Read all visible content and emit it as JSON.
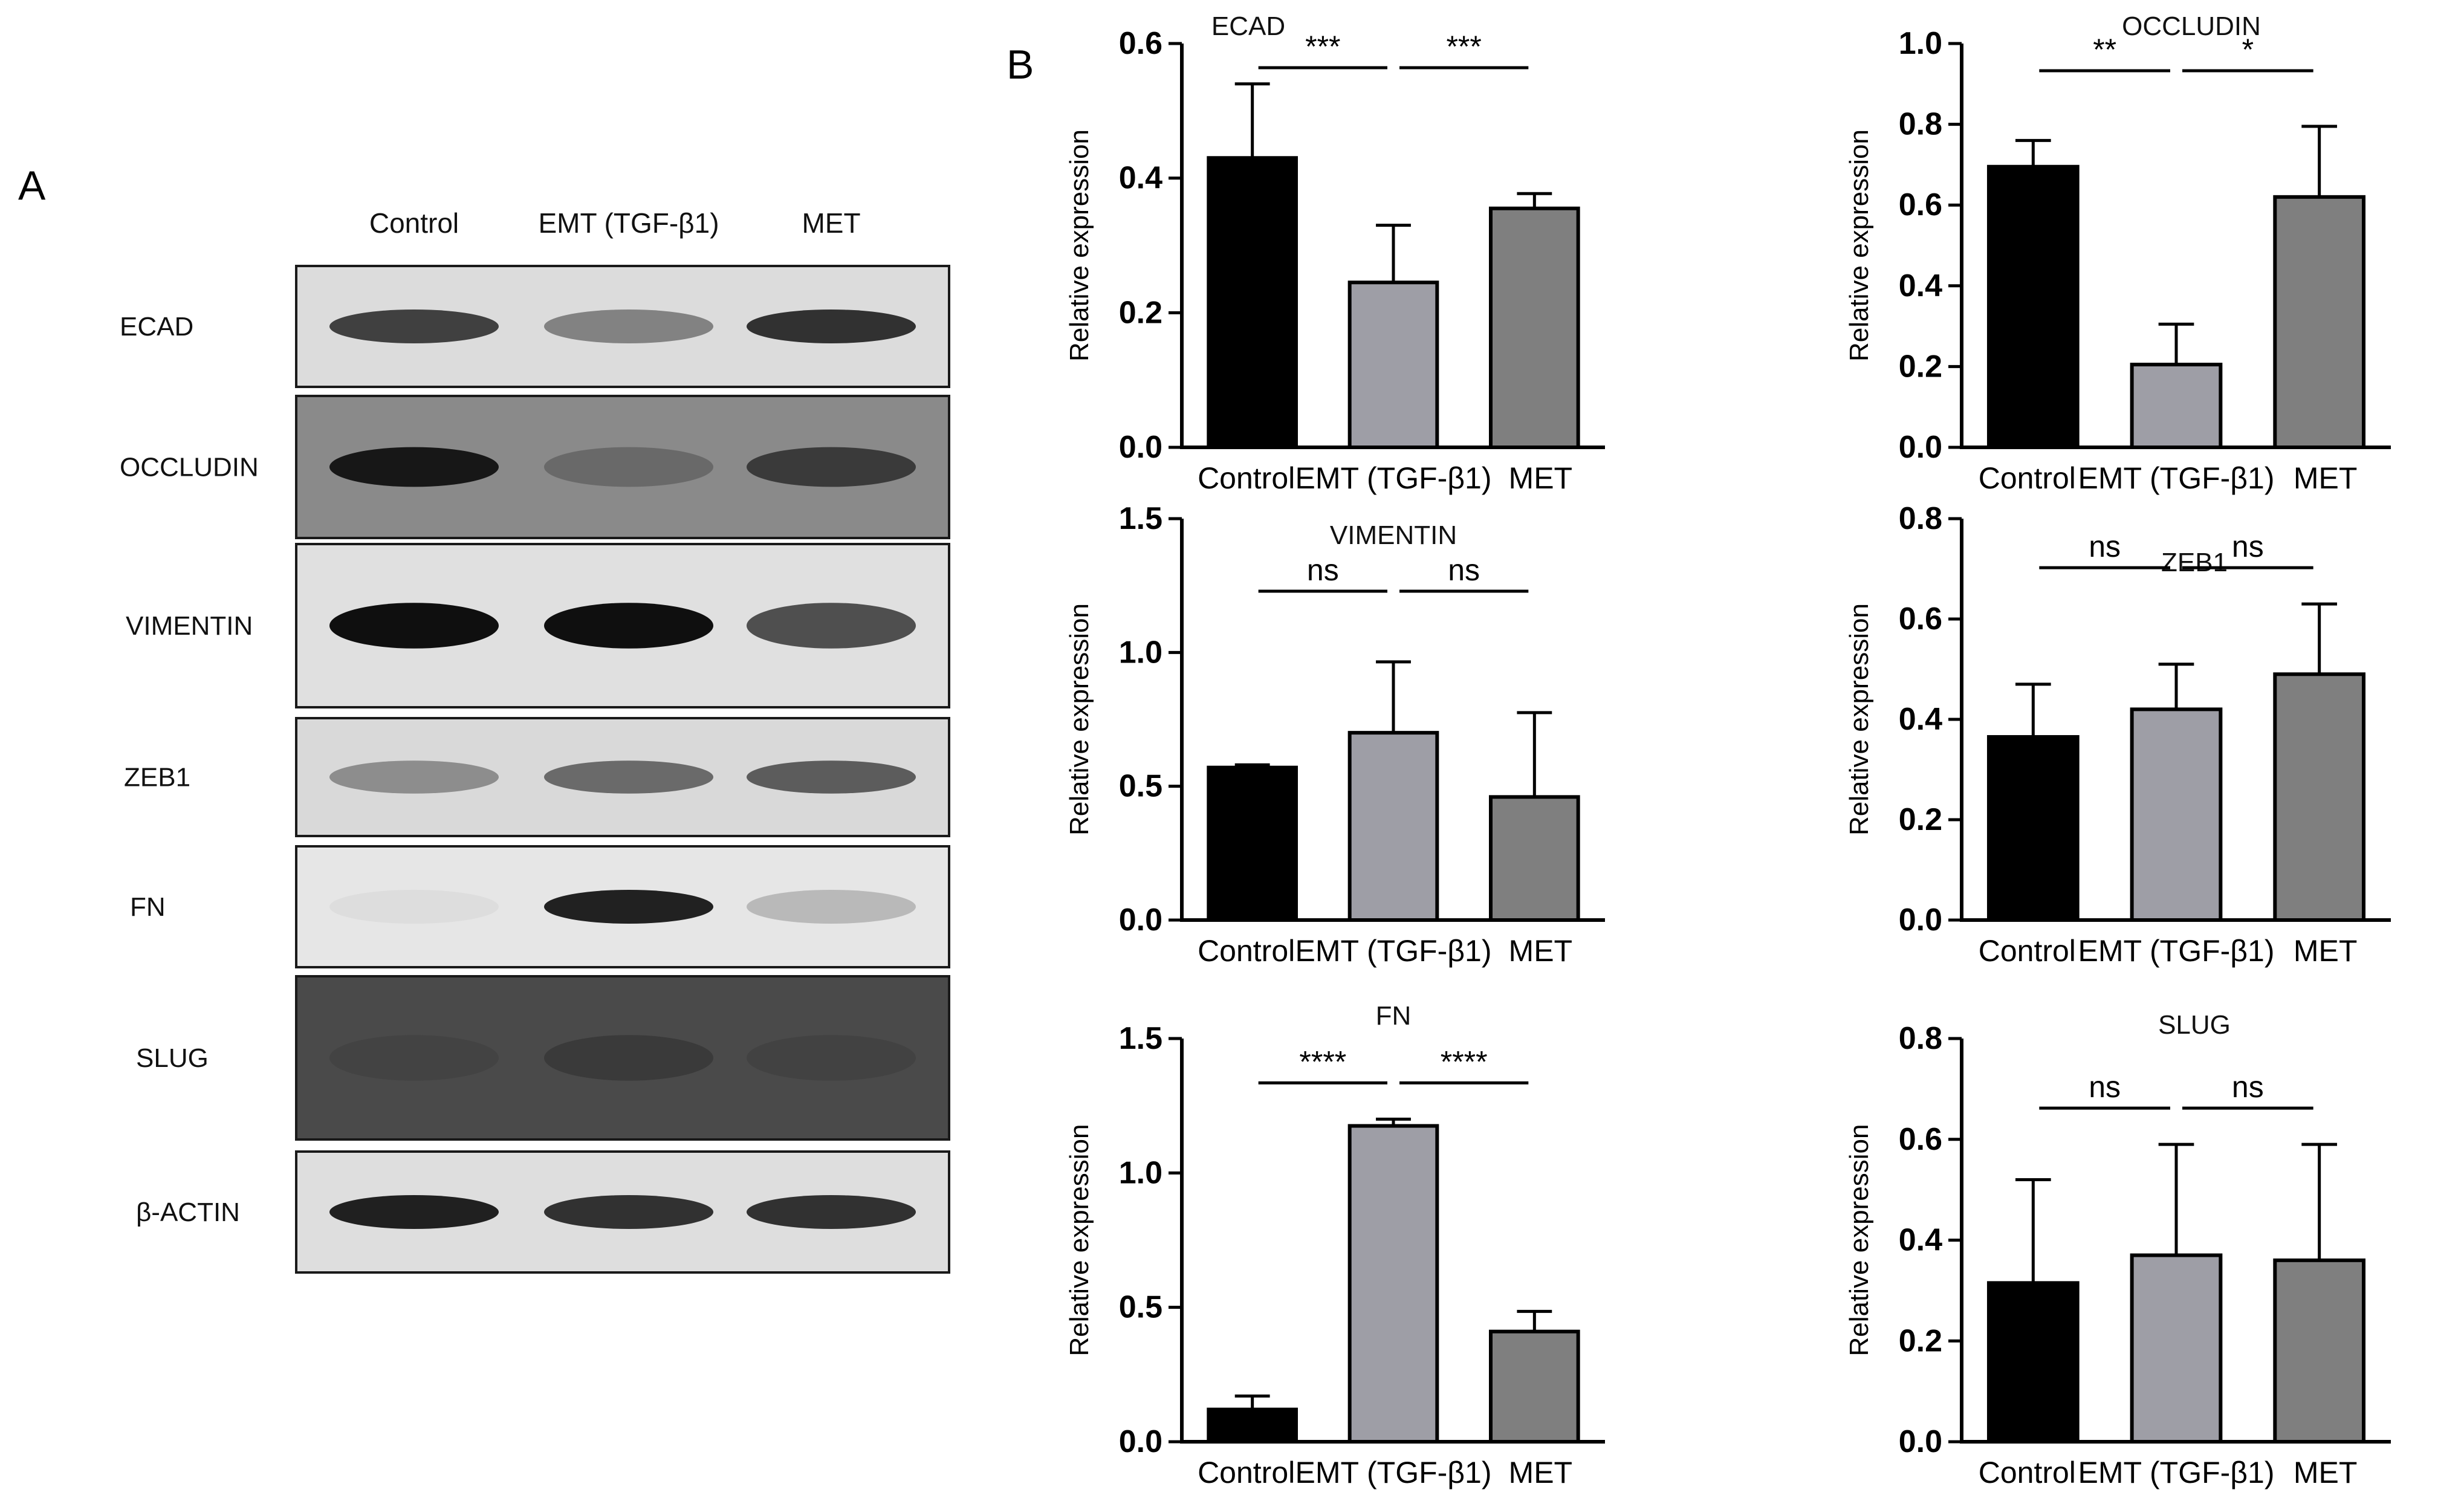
{
  "figure": {
    "panel_a_label": "A",
    "panel_b_label": "B"
  },
  "western_blot": {
    "lanes": [
      "Control",
      "EMT (TGF-β1)",
      "MET"
    ],
    "blots": [
      {
        "label": "ECAD",
        "intensities": [
          0.85,
          0.6,
          0.9
        ],
        "background": "#dcdcdc"
      },
      {
        "label": "OCCLUDIN",
        "intensities": [
          0.9,
          0.08,
          0.6
        ],
        "background": "#8a8a8a"
      },
      {
        "label": "VIMENTIN",
        "intensities": [
          1.0,
          1.0,
          0.8
        ],
        "background": "#e0e0e0"
      },
      {
        "label": "ZEB1",
        "intensities": [
          0.55,
          0.7,
          0.75
        ],
        "background": "#d9d9d9"
      },
      {
        "label": "FN",
        "intensities": [
          0.08,
          0.95,
          0.35
        ],
        "background": "#e6e6e6"
      },
      {
        "label": "SLUG",
        "intensities": [
          0.05,
          0.3,
          0.1
        ],
        "background": "#4a4a4a"
      },
      {
        "label": "β-ACTIN",
        "intensities": [
          0.95,
          0.9,
          0.9
        ],
        "background": "#dedede"
      }
    ]
  },
  "chart_data": [
    {
      "type": "bar",
      "title": "ECAD",
      "categories": [
        "Control",
        "EMT (TGF-β1)",
        "MET"
      ],
      "values": [
        0.43,
        0.245,
        0.355
      ],
      "errors": [
        0.11,
        0.085,
        0.022
      ],
      "ylabel": "Relative expression",
      "ylim": [
        0,
        0.6
      ],
      "yticks": [
        "0.0",
        "0.2",
        "0.4",
        "0.6"
      ],
      "significance": [
        "***",
        "***"
      ]
    },
    {
      "type": "bar",
      "title": "OCCLUDIN",
      "categories": [
        "Control",
        "EMT (TGF-β1)",
        "MET"
      ],
      "values": [
        0.695,
        0.205,
        0.62
      ],
      "errors": [
        0.065,
        0.1,
        0.175
      ],
      "ylabel": "Relative expression",
      "ylim": [
        0,
        1.0
      ],
      "yticks": [
        "0.0",
        "0.2",
        "0.4",
        "0.6",
        "0.8",
        "1.0"
      ],
      "significance": [
        "**",
        "*"
      ]
    },
    {
      "type": "bar",
      "title": "VIMENTIN",
      "categories": [
        "Control",
        "EMT (TGF-β1)",
        "MET"
      ],
      "values": [
        0.57,
        0.7,
        0.46
      ],
      "errors": [
        0.01,
        0.265,
        0.315
      ],
      "ylabel": "Relative expression",
      "ylim": [
        0,
        1.5
      ],
      "yticks": [
        "0.0",
        "0.5",
        "1.0",
        "1.5"
      ],
      "significance": [
        "ns",
        "ns"
      ]
    },
    {
      "type": "bar",
      "title": "ZEB1",
      "categories": [
        "Control",
        "EMT (TGF-β1)",
        "MET"
      ],
      "values": [
        0.365,
        0.42,
        0.49
      ],
      "errors": [
        0.105,
        0.09,
        0.14
      ],
      "ylabel": "Relative expression",
      "ylim": [
        0,
        0.8
      ],
      "yticks": [
        "0.0",
        "0.2",
        "0.4",
        "0.6",
        "0.8"
      ],
      "significance": [
        "ns",
        "ns"
      ]
    },
    {
      "type": "bar",
      "title": "FN",
      "categories": [
        "Control",
        "EMT (TGF-β1)",
        "MET"
      ],
      "values": [
        0.12,
        1.175,
        0.41
      ],
      "errors": [
        0.05,
        0.025,
        0.075
      ],
      "ylabel": "Relative expression",
      "ylim": [
        0,
        1.5
      ],
      "yticks": [
        "0.0",
        "0.5",
        "1.0",
        "1.5"
      ],
      "significance": [
        "****",
        "****"
      ]
    },
    {
      "type": "bar",
      "title": "SLUG",
      "categories": [
        "Control",
        "EMT (TGF-β1)",
        "MET"
      ],
      "values": [
        0.315,
        0.37,
        0.36
      ],
      "errors": [
        0.205,
        0.22,
        0.23
      ],
      "ylabel": "Relative expression",
      "ylim": [
        0,
        0.8
      ],
      "yticks": [
        "0.0",
        "0.2",
        "0.4",
        "0.6",
        "0.8"
      ],
      "significance": [
        "ns",
        "ns"
      ]
    }
  ],
  "colors": {
    "control": "#000000",
    "emt": "#9e9ea6",
    "met": "#7f7f7f"
  }
}
